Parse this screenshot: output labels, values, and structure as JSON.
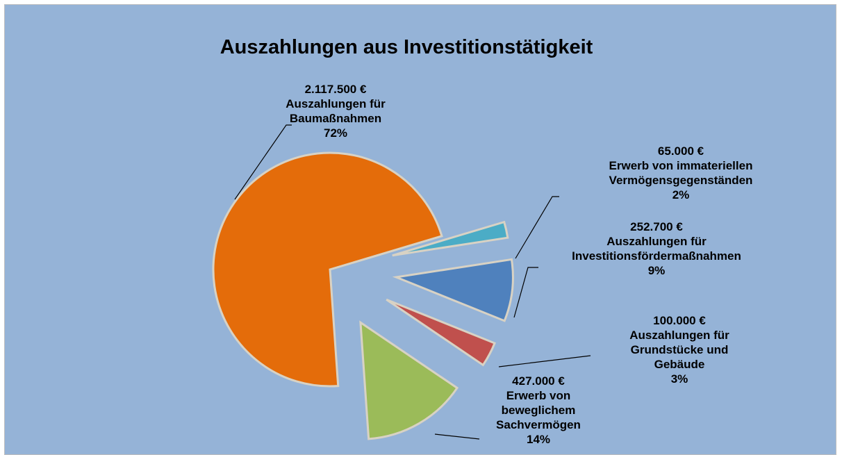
{
  "chart_data": {
    "type": "pie",
    "title": "Auszahlungen aus Investitionstätigkeit",
    "categories": [
      "Auszahlungen für Baumaßnahmen",
      "Erwerb von immateriellen Vermögensgegenständen",
      "Auszahlungen für Investitionsfördermaßnahmen",
      "Auszahlungen für Grundstücke und Gebäude",
      "Erwerb von beweglichem Sachvermögen"
    ],
    "values": [
      2117500,
      65000,
      252700,
      100000,
      427000
    ],
    "value_labels": [
      "2.117.500 €",
      "65.000 €",
      "252.700 €",
      "100.000 €",
      "427.000 €"
    ],
    "percentage_labels": [
      "72%",
      "2%",
      "9%",
      "3%",
      "14%"
    ],
    "colors": [
      "#e46c0a",
      "#4bacc6",
      "#4f81bd",
      "#c0504d",
      "#9bbb59"
    ]
  }
}
